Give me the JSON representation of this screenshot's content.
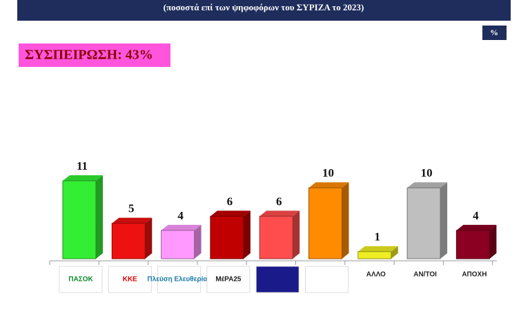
{
  "chart_data": {
    "type": "bar3d",
    "subtitle": "(ποσοστά επί των ψηφοφόρων του ΣΥΡΙΖΑ το 2023)",
    "unit_label": "%",
    "annotation": "ΣΥΣΠΕΙΡΩΣΗ: 43%",
    "categories": [
      "ΠΑΣΟΚ",
      "ΚΚΕ",
      "Πλεύση Ελευθερίας",
      "ΜέΡΑ25",
      null,
      null,
      "ΑΛΛΟ",
      "ΑΝ/ΤΟΙ",
      "ΑΠΟΧΗ"
    ],
    "values": [
      11,
      5,
      4,
      6,
      6,
      10,
      1,
      10,
      4
    ],
    "colors": [
      "#33ee33",
      "#ee1111",
      "#ff99ff",
      "#c00000",
      "#ff4d4d",
      "#ff8c00",
      "#eeee22",
      "#bfbfbf",
      "#8b0022"
    ]
  }
}
